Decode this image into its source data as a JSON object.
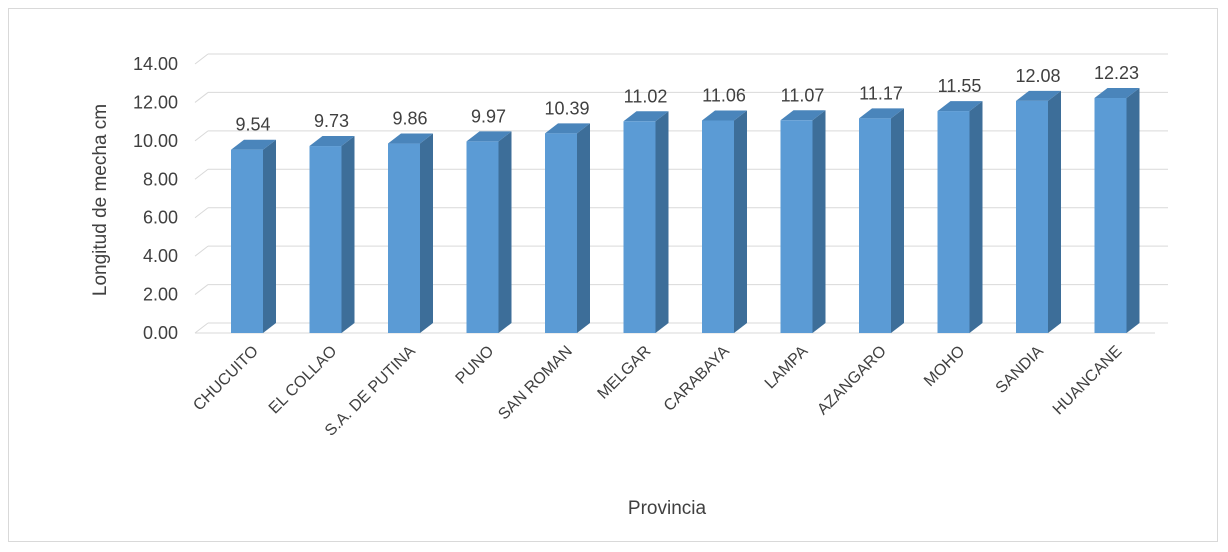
{
  "chart_data": {
    "type": "bar",
    "style": "3d-column",
    "categories": [
      "CHUCUITO",
      "EL COLLAO",
      "S.A. DE PUTINA",
      "PUNO",
      "SAN ROMAN",
      "MELGAR",
      "CARABAYA",
      "LAMPA",
      "AZANGARO",
      "MOHO",
      "SANDIA",
      "HUANCANE"
    ],
    "values": [
      9.54,
      9.73,
      9.86,
      9.97,
      10.39,
      11.02,
      11.06,
      11.07,
      11.17,
      11.55,
      12.08,
      12.23
    ],
    "value_labels": [
      "9.54",
      "9.73",
      "9.86",
      "9.97",
      "10.39",
      "11.02",
      "11.06",
      "11.07",
      "11.17",
      "11.55",
      "12.08",
      "12.23"
    ],
    "xlabel": "Provincia",
    "ylabel": "Longitud de mecha cm",
    "ylim": [
      0,
      14
    ],
    "yticks": [
      "0.00",
      "2.00",
      "4.00",
      "6.00",
      "8.00",
      "10.00",
      "12.00",
      "14.00"
    ],
    "grid": true,
    "colors": {
      "bar_front": "#5b9bd5",
      "bar_side": "#3d6e99",
      "bar_top": "#4a85bb",
      "grid": "#d9d9d9",
      "text": "#404040"
    }
  }
}
